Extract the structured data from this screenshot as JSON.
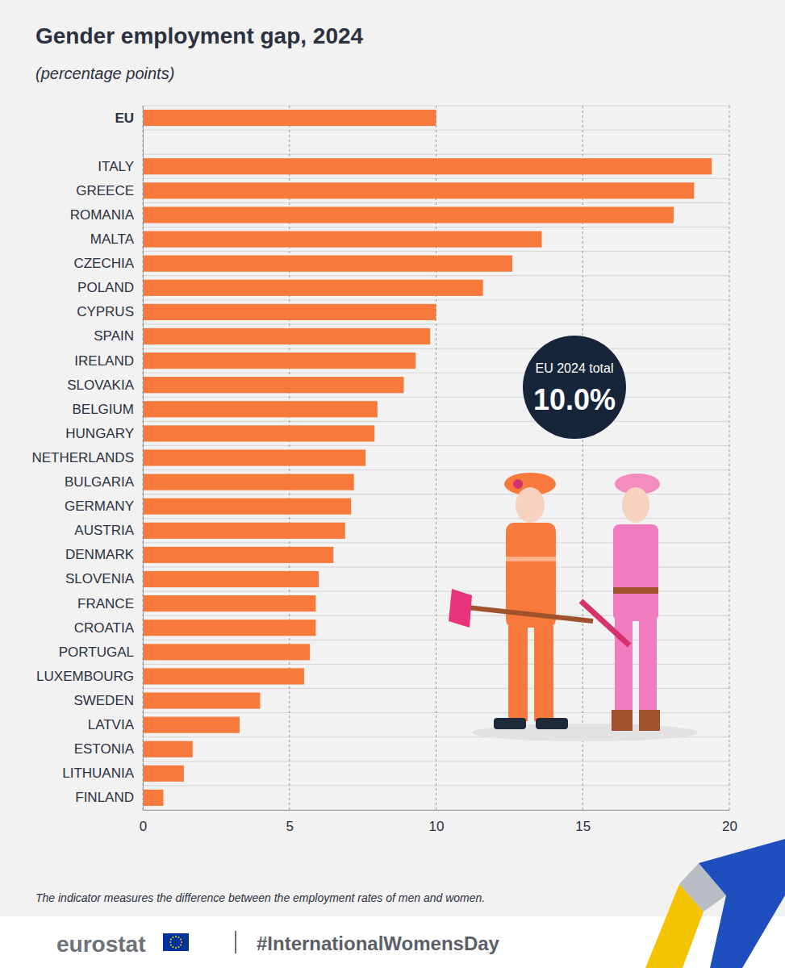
{
  "chart_data": {
    "type": "bar",
    "orientation": "horizontal",
    "title": "Gender employment gap, 2024",
    "subtitle": "(percentage points)",
    "categories": [
      "EU",
      null,
      "ITALY",
      "GREECE",
      "ROMANIA",
      "MALTA",
      "CZECHIA",
      "POLAND",
      "CYPRUS",
      "SPAIN",
      "IRELAND",
      "SLOVAKIA",
      "BELGIUM",
      "HUNGARY",
      "NETHERLANDS",
      "BULGARIA",
      "GERMANY",
      "AUSTRIA",
      "DENMARK",
      "SLOVENIA",
      "FRANCE",
      "CROATIA",
      "PORTUGAL",
      "LUXEMBOURG",
      "SWEDEN",
      "LATVIA",
      "ESTONIA",
      "LITHUANIA",
      "FINLAND"
    ],
    "values": [
      10.0,
      null,
      19.4,
      18.8,
      18.1,
      13.6,
      12.6,
      11.6,
      10.0,
      9.8,
      9.3,
      8.9,
      8.0,
      7.9,
      7.6,
      7.2,
      7.1,
      6.9,
      6.5,
      6.0,
      5.9,
      5.9,
      5.7,
      5.5,
      4.0,
      3.3,
      1.7,
      1.4,
      0.7
    ],
    "color": "#f7793b",
    "xlim": [
      0,
      20
    ],
    "xticks": [
      0,
      5,
      10,
      15,
      20
    ],
    "grid": true,
    "annotations": [
      {
        "text": "EU 2024 total"
      },
      {
        "text": "10.0%"
      }
    ],
    "note": "The indicator measures the difference between the employment rates of men and women.",
    "source": "eurostat",
    "hashtag": "#InternationalWomensDay"
  }
}
